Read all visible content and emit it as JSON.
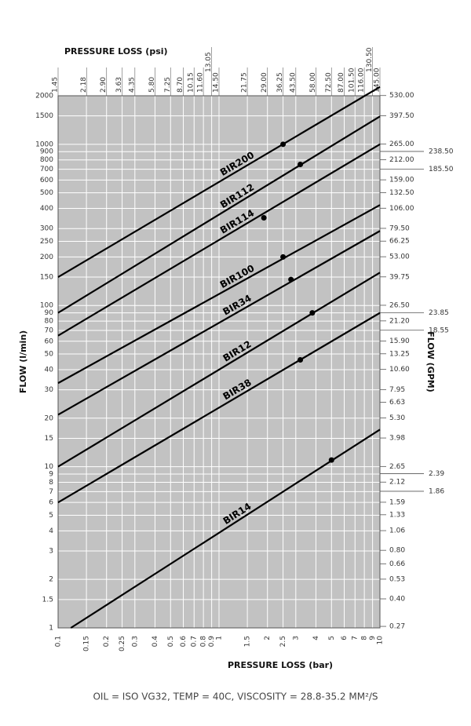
{
  "chart_data": {
    "type": "line",
    "xlabel": "PRESSURE LOSS (bar)",
    "x2label": "PRESSURE LOSS (psi)",
    "ylabel": "FLOW (l/min)",
    "y2label": "FLOW (GPM)",
    "note": "OIL = ISO VG32, TEMP = 40C, VISCOSITY = 28.8-35.2 MM²/S",
    "xscale": "log",
    "yscale": "log",
    "grid": true,
    "xlim": [
      0.1,
      10
    ],
    "ylim": [
      1,
      2000
    ],
    "x2lim": [
      1.45,
      145
    ],
    "y2lim": [
      0.2642,
      528.4
    ],
    "xticks": [
      0.1,
      0.15,
      0.2,
      0.25,
      0.3,
      0.4,
      0.5,
      0.6,
      0.7,
      0.8,
      0.9,
      1,
      1.5,
      2,
      2.5,
      3,
      4,
      5,
      6,
      7,
      8,
      9,
      10
    ],
    "x2ticks": [
      1.45,
      2.18,
      {
        "value": 2.9,
        "label": "2.90"
      },
      3.63,
      4.35,
      {
        "value": 5.8,
        "label": "5.80"
      },
      7.25,
      {
        "value": 8.7,
        "label": "8.70"
      },
      10.15,
      {
        "value": 11.6,
        "label": "11.60"
      },
      13.05,
      {
        "value": 14.5,
        "label": "14.50"
      },
      21.75,
      {
        "value": 29,
        "label": "29.00"
      },
      36.25,
      {
        "value": 43.5,
        "label": "43.50"
      },
      {
        "value": 58,
        "label": "58.00"
      },
      {
        "value": 72.5,
        "label": "72.50"
      },
      {
        "value": 87,
        "label": "87.00"
      },
      {
        "value": 101.5,
        "label": "101.50"
      },
      {
        "value": 116,
        "label": "116.00"
      },
      {
        "value": 130.5,
        "label": "130.50"
      },
      {
        "value": 145,
        "label": "145.00"
      }
    ],
    "yticks": [
      1,
      1.5,
      2,
      3,
      4,
      5,
      6,
      7,
      8,
      9,
      10,
      15,
      20,
      30,
      40,
      50,
      60,
      70,
      80,
      90,
      100,
      150,
      200,
      250,
      300,
      400,
      500,
      600,
      700,
      800,
      900,
      1000,
      1500,
      2000
    ],
    "y2ticks": [
      0.27,
      {
        "value": 0.4,
        "label": "0.40"
      },
      0.53,
      0.66,
      {
        "value": 0.8,
        "label": "0.80"
      },
      1.06,
      1.33,
      1.59,
      2.12,
      2.65,
      3.98,
      {
        "value": 5.3,
        "label": "5.30"
      },
      6.63,
      7.95,
      {
        "value": 10.6,
        "label": "10.60"
      },
      13.25,
      {
        "value": 15.9,
        "label": "15.90"
      },
      {
        "value": 21.2,
        "label": "21.20"
      },
      {
        "value": 26.5,
        "label": "26.50"
      },
      39.75,
      {
        "value": 53,
        "label": "53.00"
      },
      66.25,
      {
        "value": 79.5,
        "label": "79.50"
      },
      {
        "value": 106,
        "label": "106.00"
      },
      {
        "value": 132.5,
        "label": "132.50"
      },
      {
        "value": 159,
        "label": "159.00"
      },
      {
        "value": 212,
        "label": "212.00"
      },
      {
        "value": 265,
        "label": "265.00"
      },
      {
        "value": 397.5,
        "label": "397.50"
      },
      {
        "value": 530,
        "label": "530.00"
      }
    ],
    "y2ticks_outer": [
      1.86,
      2.39,
      18.55,
      23.85,
      {
        "value": 185.5,
        "label": "185.50"
      },
      {
        "value": 238.5,
        "label": "238.50"
      }
    ],
    "series": [
      {
        "name": "BIR200",
        "color": "#000000",
        "x": [
          0.1,
          10
        ],
        "values": [
          150,
          2270
        ],
        "rated": {
          "x": 2.5,
          "y": 1000
        }
      },
      {
        "name": "BIR112",
        "color": "#000000",
        "x": [
          0.1,
          10
        ],
        "values": [
          90,
          1490
        ],
        "rated": {
          "x": 3.2,
          "y": 750
        }
      },
      {
        "name": "BIR114",
        "color": "#000000",
        "x": [
          0.1,
          10
        ],
        "values": [
          65,
          1000
        ],
        "rated": {
          "x": 1.9,
          "y": 350
        }
      },
      {
        "name": "BIR100",
        "color": "#000000",
        "x": [
          0.1,
          10
        ],
        "values": [
          33,
          420
        ],
        "rated": {
          "x": 2.5,
          "y": 200
        }
      },
      {
        "name": "BIR34",
        "color": "#000000",
        "x": [
          0.1,
          10
        ],
        "values": [
          21,
          290
        ],
        "rated": {
          "x": 2.8,
          "y": 145
        }
      },
      {
        "name": "BIR12",
        "color": "#000000",
        "x": [
          0.1,
          10
        ],
        "values": [
          10,
          160
        ],
        "rated": {
          "x": 3.8,
          "y": 90
        }
      },
      {
        "name": "BIR38",
        "color": "#000000",
        "x": [
          0.1,
          10
        ],
        "values": [
          6,
          90
        ],
        "rated": {
          "x": 3.2,
          "y": 46
        }
      },
      {
        "name": "BIR14",
        "color": "#000000",
        "x": [
          0.12,
          10
        ],
        "values": [
          1,
          17
        ],
        "rated": {
          "x": 5,
          "y": 11
        }
      }
    ]
  }
}
